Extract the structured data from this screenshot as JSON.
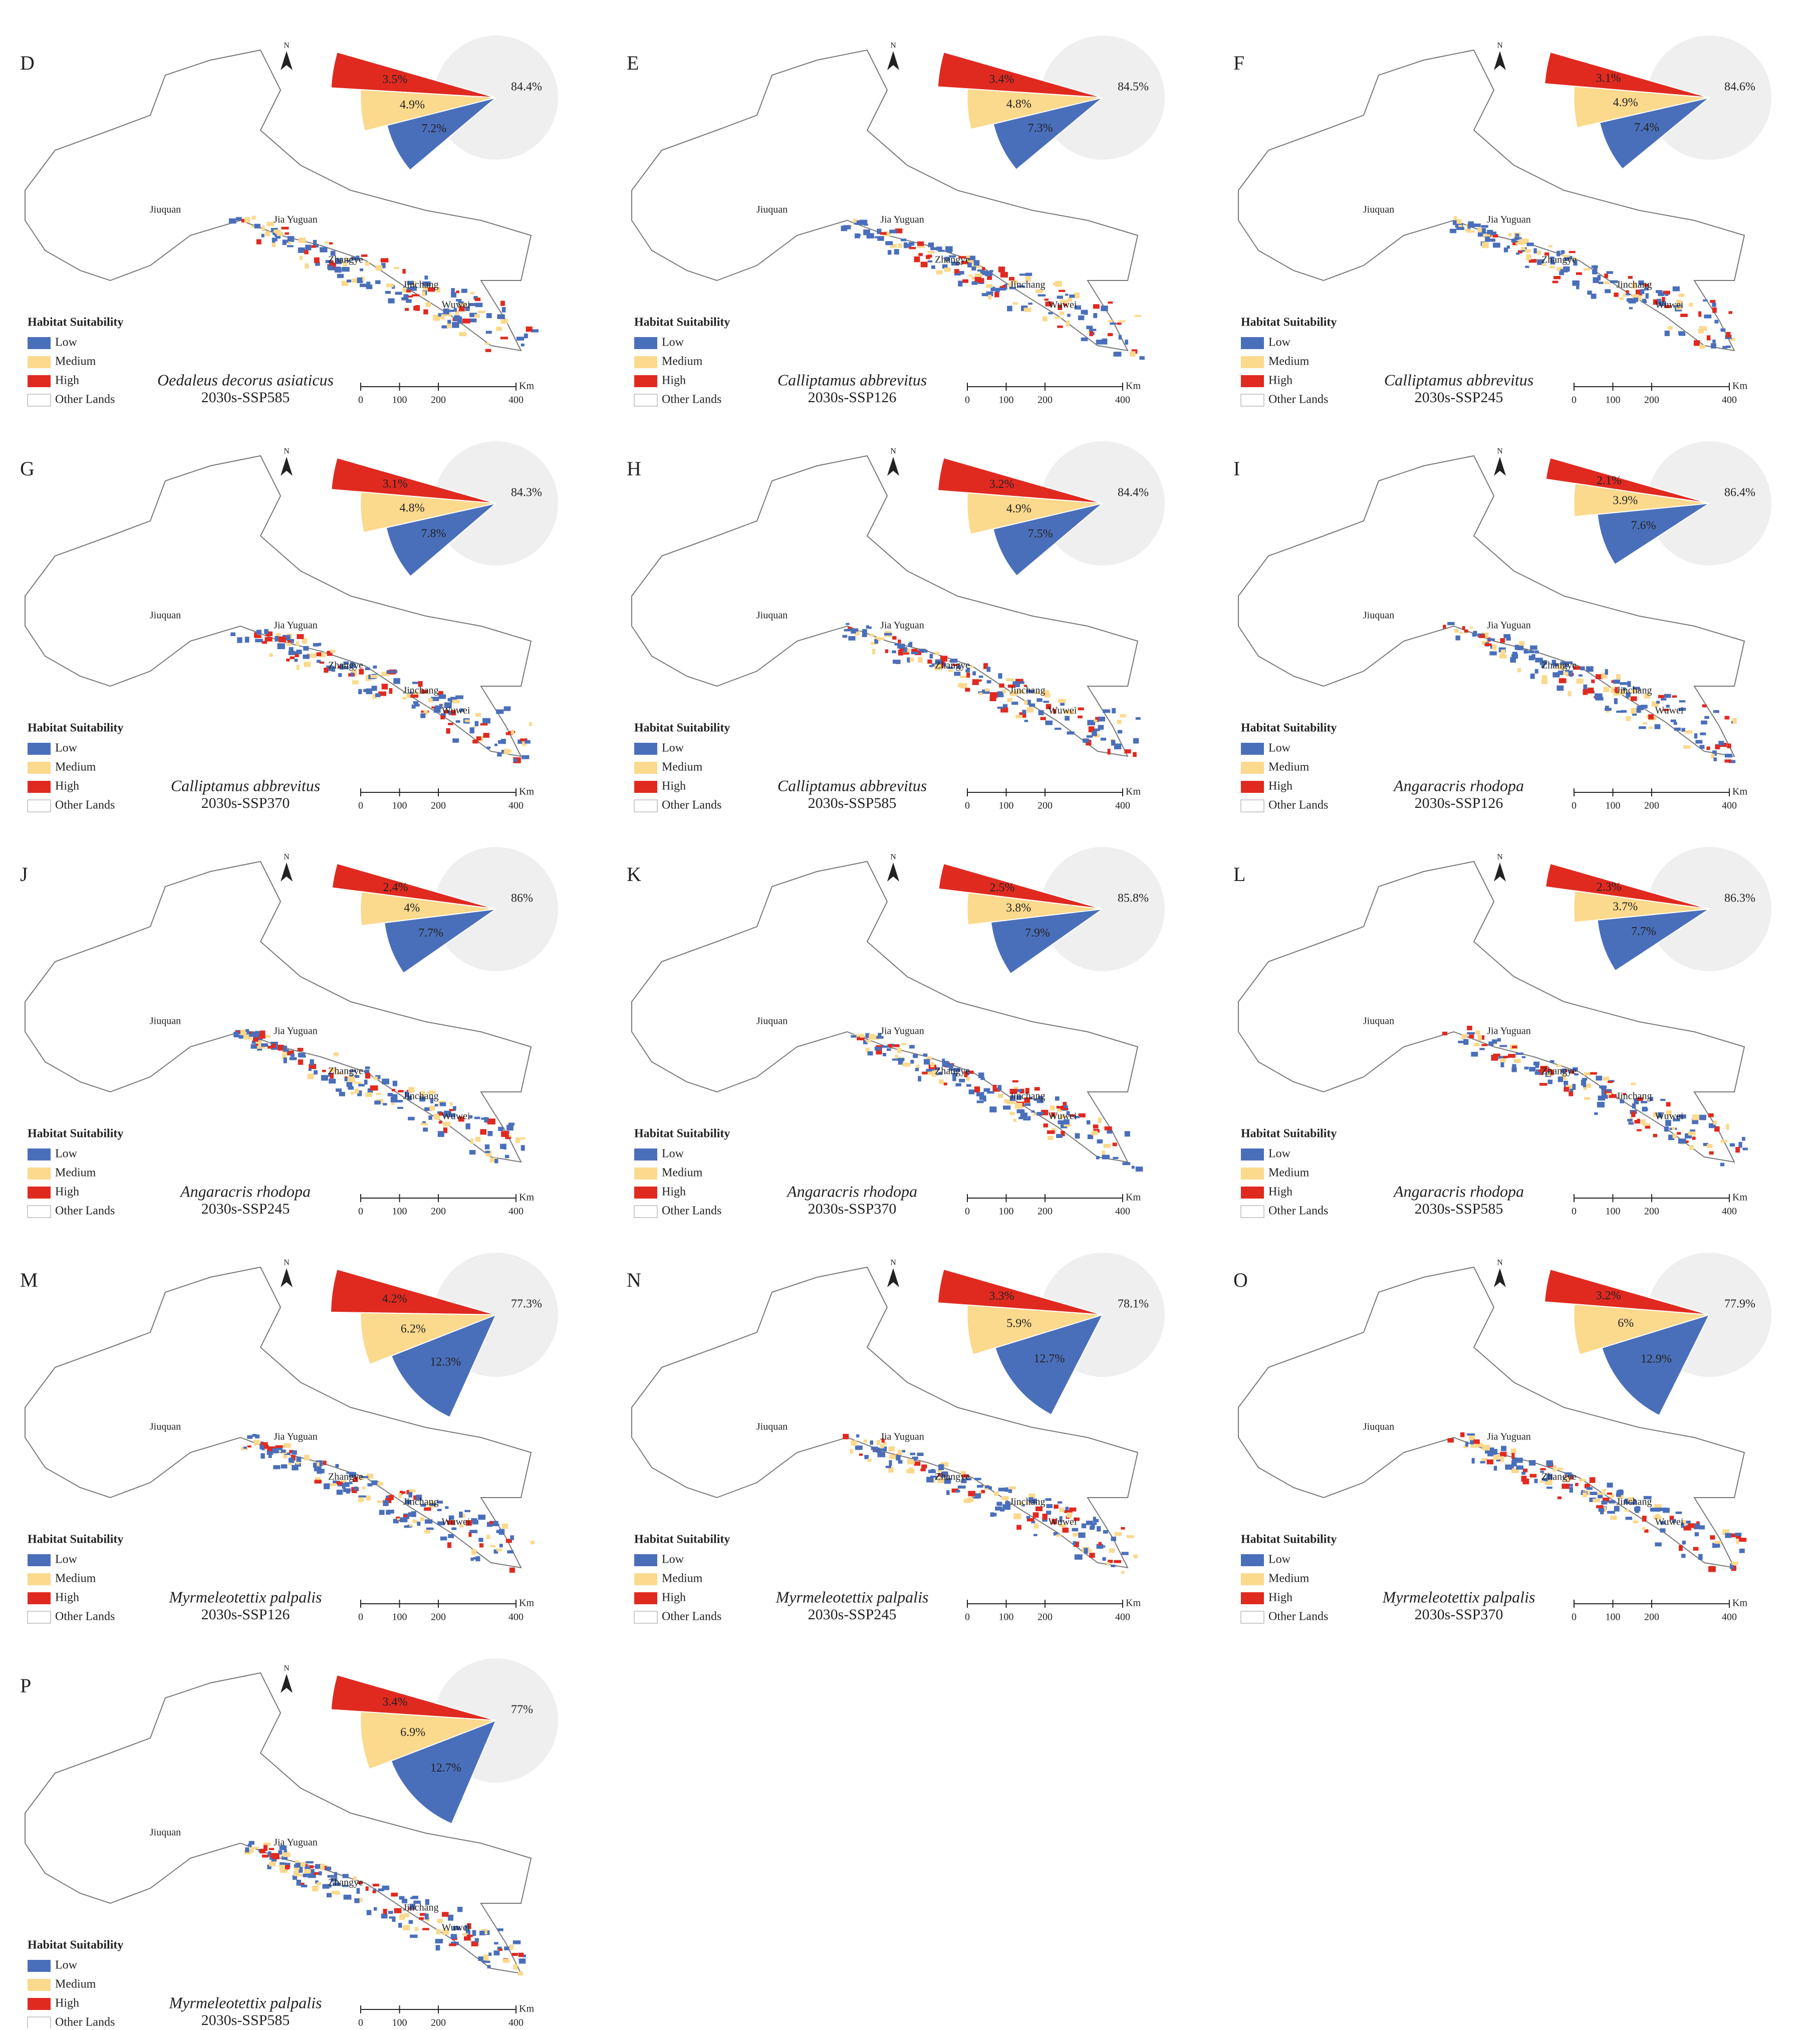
{
  "map": {
    "legend_title": "Habitat Suitability",
    "legend": [
      "Low",
      "Medium",
      "High",
      "Other Lands"
    ],
    "colors": [
      "#4a6fba",
      "#fbd98d",
      "#e02a20",
      "#efefef"
    ],
    "cities": [
      "Jiuquan",
      "Jia Yuguan",
      "Zhangye",
      "Jinchang",
      "Wuwei"
    ],
    "north": "N",
    "scale_ticks": [
      0,
      100,
      200,
      400
    ],
    "scale_unit": "Km"
  },
  "chart_data": [
    {
      "type": "pie",
      "panel": "D",
      "title": "Oedaleus decorus asiaticus",
      "subtitle": "2030s-SSP585",
      "values": [
        7.2,
        4.9,
        3.5,
        84.4
      ],
      "value_labels": [
        "7.2%",
        "4.9%",
        "3.5%",
        "84.4%"
      ]
    },
    {
      "type": "pie",
      "panel": "E",
      "title": "Calliptamus abbrevitus",
      "subtitle": "2030s-SSP126",
      "values": [
        7.3,
        4.8,
        3.4,
        84.5
      ],
      "value_labels": [
        "7.3%",
        "4.8%",
        "3.4%",
        "84.5%"
      ]
    },
    {
      "type": "pie",
      "panel": "F",
      "title": "Calliptamus abbrevitus",
      "subtitle": "2030s-SSP245",
      "values": [
        7.4,
        4.9,
        3.1,
        84.6
      ],
      "value_labels": [
        "7.4%",
        "4.9%",
        "3.1%",
        "84.6%"
      ]
    },
    {
      "type": "pie",
      "panel": "G",
      "title": "Calliptamus abbrevitus",
      "subtitle": "2030s-SSP370",
      "values": [
        7.8,
        4.8,
        3.1,
        84.3
      ],
      "value_labels": [
        "7.8%",
        "4.8%",
        "3.1%",
        "84.3%"
      ]
    },
    {
      "type": "pie",
      "panel": "H",
      "title": "Calliptamus abbrevitus",
      "subtitle": "2030s-SSP585",
      "values": [
        7.5,
        4.9,
        3.2,
        84.4
      ],
      "value_labels": [
        "7.5%",
        "4.9%",
        "3.2%",
        "84.4%"
      ]
    },
    {
      "type": "pie",
      "panel": "I",
      "title": "Angaracris rhodopa",
      "subtitle": "2030s-SSP126",
      "values": [
        7.6,
        3.9,
        2.1,
        86.4
      ],
      "value_labels": [
        "7.6%",
        "3.9%",
        "2.1%",
        "86.4%"
      ]
    },
    {
      "type": "pie",
      "panel": "J",
      "title": "Angaracris rhodopa",
      "subtitle": "2030s-SSP245",
      "values": [
        7.7,
        4,
        2.4,
        86
      ],
      "value_labels": [
        "7.7%",
        "4%",
        "2.4%",
        "86%"
      ]
    },
    {
      "type": "pie",
      "panel": "K",
      "title": "Angaracris rhodopa",
      "subtitle": "2030s-SSP370",
      "values": [
        7.9,
        3.8,
        2.5,
        85.8
      ],
      "value_labels": [
        "7.9%",
        "3.8%",
        "2.5%",
        "85.8%"
      ]
    },
    {
      "type": "pie",
      "panel": "L",
      "title": "Angaracris rhodopa",
      "subtitle": "2030s-SSP585",
      "values": [
        7.7,
        3.7,
        2.3,
        86.3
      ],
      "value_labels": [
        "7.7%",
        "3.7%",
        "2.3%",
        "86.3%"
      ]
    },
    {
      "type": "pie",
      "panel": "M",
      "title": "Myrmeleotettix palpalis",
      "subtitle": "2030s-SSP126",
      "values": [
        12.3,
        6.2,
        4.2,
        77.3
      ],
      "value_labels": [
        "12.3%",
        "6.2%",
        "4.2%",
        "77.3%"
      ]
    },
    {
      "type": "pie",
      "panel": "N",
      "title": "Myrmeleotettix palpalis",
      "subtitle": "2030s-SSP245",
      "values": [
        12.7,
        5.9,
        3.3,
        78.1
      ],
      "value_labels": [
        "12.7%",
        "5.9%",
        "3.3%",
        "78.1%"
      ]
    },
    {
      "type": "pie",
      "panel": "O",
      "title": "Myrmeleotettix palpalis",
      "subtitle": "2030s-SSP370",
      "values": [
        12.9,
        6,
        3.2,
        77.9
      ],
      "value_labels": [
        "12.9%",
        "6%",
        "3.2%",
        "77.9%"
      ]
    },
    {
      "type": "pie",
      "panel": "P",
      "title": "Myrmeleotettix palpalis",
      "subtitle": "2030s-SSP585",
      "values": [
        12.7,
        6.9,
        3.4,
        77
      ],
      "value_labels": [
        "12.7%",
        "6.9%",
        "3.4%",
        "77%"
      ]
    }
  ]
}
